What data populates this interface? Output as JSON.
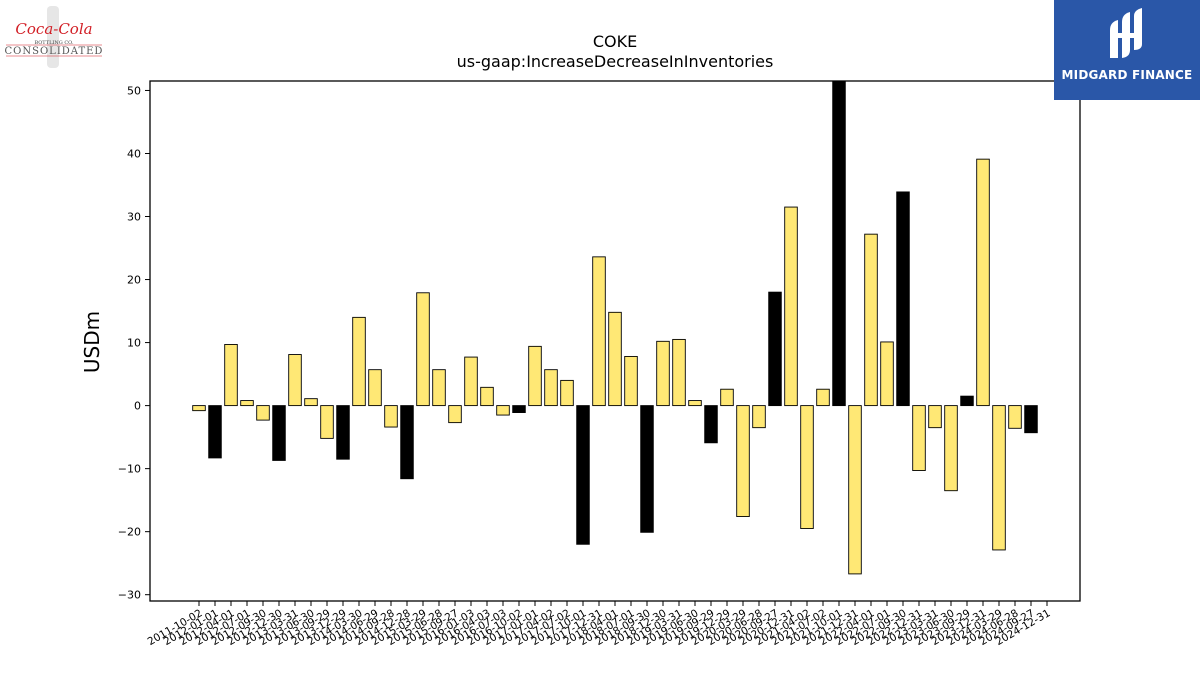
{
  "header": {
    "title": "COKE",
    "subtitle": "us-gaap:IncreaseDecreaseInInventories"
  },
  "logos": {
    "left": {
      "line1": "Coca-Cola",
      "line2": "BOTTLING CO.",
      "line3": "CONSOLIDATED",
      "color": "#d21f26"
    },
    "right": {
      "text": "MIDGARD FINANCE",
      "bg": "#2a57a8"
    }
  },
  "colors": {
    "positive_fill": "#ffe875",
    "highlight_fill": "#000000",
    "edge": "#000000"
  },
  "chart_data": {
    "type": "bar",
    "title": "COKE",
    "subtitle": "us-gaap:IncreaseDecreaseInInventories",
    "ylabel": "USDm",
    "xlabel": "",
    "ylim": [
      -31,
      51.5
    ],
    "yticks": [
      -30,
      -20,
      -10,
      0,
      10,
      20,
      30,
      40,
      50
    ],
    "grid": false,
    "categories": [
      "2011-10-02",
      "2012-01-01",
      "2012-04-01",
      "2012-07-01",
      "2012-09-30",
      "2012-12-30",
      "2013-03-31",
      "2013-06-30",
      "2013-09-29",
      "2013-12-29",
      "2014-03-30",
      "2014-06-29",
      "2014-09-28",
      "2014-12-28",
      "2015-03-29",
      "2015-06-28",
      "2015-09-27",
      "2016-01-03",
      "2016-04-03",
      "2016-07-03",
      "2016-10-02",
      "2017-01-01",
      "2017-04-02",
      "2017-07-02",
      "2017-10-01",
      "2017-12-31",
      "2018-04-01",
      "2018-07-01",
      "2018-09-30",
      "2018-12-30",
      "2019-03-31",
      "2019-06-30",
      "2019-09-29",
      "2019-12-29",
      "2020-03-29",
      "2020-06-28",
      "2020-09-27",
      "2020-12-31",
      "2021-04-02",
      "2021-07-02",
      "2021-10-01",
      "2021-12-31",
      "2022-04-01",
      "2022-07-01",
      "2022-09-30",
      "2022-12-31",
      "2023-03-31",
      "2023-06-30",
      "2023-09-29",
      "2023-12-31",
      "2024-03-29",
      "2024-06-28",
      "2024-09-27",
      "2024-12-31"
    ],
    "values": [
      -0.8,
      -8.3,
      9.7,
      0.8,
      -2.3,
      -8.7,
      8.1,
      1.1,
      -5.2,
      -8.5,
      14.0,
      5.7,
      -3.4,
      -11.6,
      17.9,
      5.7,
      -2.7,
      7.7,
      2.9,
      -1.5,
      -1.1,
      9.4,
      5.7,
      4.0,
      -22.0,
      23.6,
      14.8,
      7.8,
      -20.1,
      10.2,
      10.5,
      0.8,
      -5.9,
      2.6,
      -17.6,
      -3.5,
      18.0,
      31.5,
      -19.5,
      2.6,
      51.5,
      -26.7,
      27.2,
      10.1,
      33.9,
      -10.3,
      -3.5,
      -13.5,
      1.5,
      39.1,
      -22.9,
      -3.6,
      -4.3,
      0
    ],
    "highlight": [
      false,
      true,
      false,
      false,
      false,
      true,
      false,
      false,
      false,
      true,
      false,
      false,
      false,
      true,
      false,
      false,
      false,
      false,
      false,
      false,
      true,
      false,
      false,
      false,
      true,
      false,
      false,
      false,
      true,
      false,
      false,
      false,
      true,
      false,
      false,
      false,
      true,
      false,
      false,
      false,
      true,
      false,
      false,
      false,
      true,
      false,
      false,
      false,
      true,
      false,
      false,
      false,
      true,
      false
    ]
  }
}
